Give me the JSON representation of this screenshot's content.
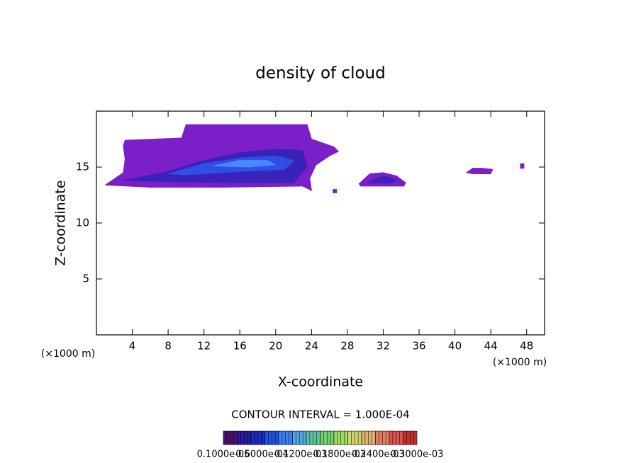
{
  "chart_data": {
    "type": "contour",
    "title": "density of cloud",
    "xlabel": "X-coordinate",
    "ylabel": "Z-coordinate",
    "x_unit_left": "(×1000 m)",
    "x_unit_right": "(×1000 m)",
    "contour_interval": "CONTOUR INTERVAL = 1.000E-04",
    "xlim": [
      0,
      50
    ],
    "ylim": [
      0,
      20
    ],
    "xticks": [
      4,
      8,
      12,
      16,
      20,
      24,
      28,
      32,
      36,
      40,
      44,
      48
    ],
    "yticks": [
      5,
      10,
      15
    ],
    "contours": [
      {
        "color": "#7b1fc8",
        "x": [
          1,
          3,
          3.2,
          3,
          3.2,
          9.5,
          10,
          23.5,
          24,
          26.5,
          27,
          26,
          24.5,
          23.8,
          24,
          23,
          14,
          6,
          1
        ],
        "y": [
          13.4,
          14.5,
          15.7,
          16.9,
          17.4,
          17.6,
          18.8,
          18.8,
          17.5,
          16.8,
          16.4,
          16.0,
          15.2,
          14.0,
          12.9,
          13.3,
          13.2,
          13.2,
          13.4
        ]
      },
      {
        "color": "#3a22b8",
        "x": [
          3,
          8,
          12,
          16,
          20,
          23,
          23.5,
          22,
          16,
          8,
          3
        ],
        "y": [
          13.8,
          14.6,
          15.6,
          16.3,
          16.6,
          16.5,
          15,
          13.6,
          13.6,
          13.7,
          13.8
        ]
      },
      {
        "color": "#2f4fe6",
        "x": [
          8,
          12,
          16,
          20,
          22,
          21,
          16,
          10,
          8
        ],
        "y": [
          14.4,
          15.3,
          15.8,
          16.0,
          15.6,
          14.8,
          14.6,
          14.3,
          14.4
        ]
      },
      {
        "color": "#4a86ff",
        "x": [
          13,
          16,
          19,
          20,
          17,
          13
        ],
        "y": [
          15.1,
          15.6,
          15.6,
          15.2,
          15.0,
          15.1
        ]
      },
      {
        "color": "#7b1fc8",
        "x": [
          29.3,
          30.5,
          32,
          33.5,
          34.5,
          34.3,
          29.5
        ],
        "y": [
          13.5,
          14.4,
          14.5,
          14.2,
          13.6,
          13.3,
          13.3
        ]
      },
      {
        "color": "#3a22b8",
        "x": [
          30.5,
          32,
          33.5,
          33,
          30.5
        ],
        "y": [
          13.7,
          14.2,
          13.9,
          13.6,
          13.6
        ]
      },
      {
        "color": "#7b1fc8",
        "x": [
          42,
          43,
          44.2,
          44,
          42,
          41.3
        ],
        "y": [
          14.9,
          14.9,
          14.8,
          14.4,
          14.4,
          14.5
        ]
      },
      {
        "color": "#7b1fc8",
        "x": [
          26.4,
          26.8,
          26.8,
          26.4
        ],
        "y": [
          12.7,
          12.7,
          13.0,
          13.0
        ]
      },
      {
        "color": "#7b1fc8",
        "x": [
          47.3,
          47.7,
          47.7,
          47.3
        ],
        "y": [
          14.9,
          14.9,
          15.3,
          15.3
        ]
      }
    ],
    "colorbar": {
      "colors": [
        "#4a1070",
        "#2a1a9a",
        "#1a2ac0",
        "#2050e0",
        "#3a80f0",
        "#50a8e0",
        "#60c0a0",
        "#70d070",
        "#a0d860",
        "#d0d070",
        "#e0b070",
        "#e08060",
        "#e05050",
        "#c03030"
      ],
      "labels": [
        "0.1000e-05",
        "0.6000e-04",
        "0.1200e-03",
        "0.1800e-03",
        "0.2400e-03",
        "0.3000e-03"
      ]
    }
  }
}
